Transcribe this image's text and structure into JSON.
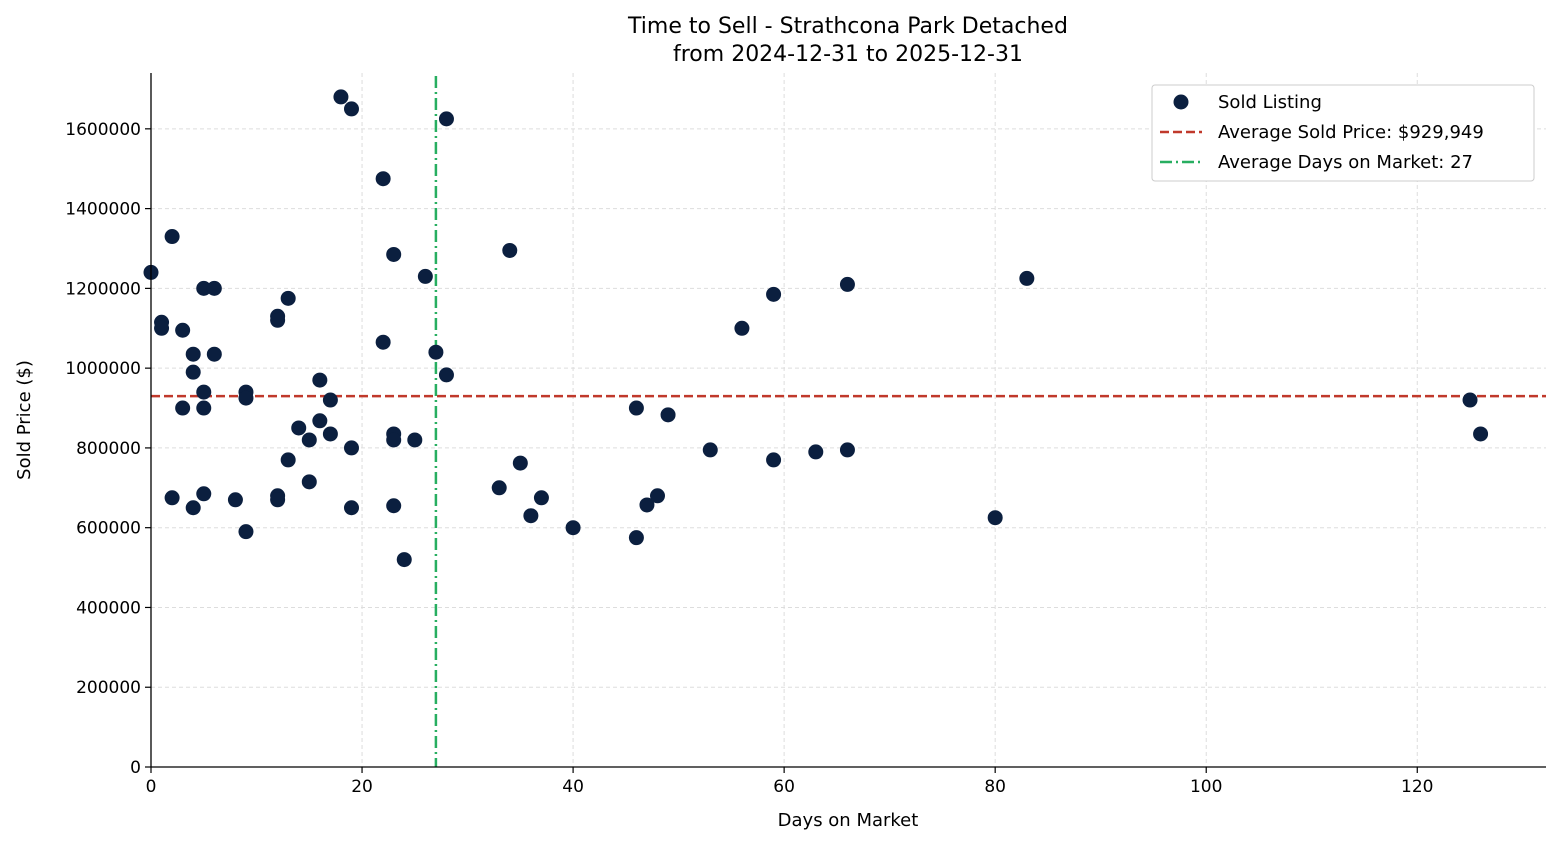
{
  "chart_data": {
    "type": "scatter",
    "title": "Time to Sell - Strathcona Park Detached",
    "subtitle": "from 2024-12-31 to 2025-12-31",
    "xlabel": "Days on Market",
    "ylabel": "Sold Price ($)",
    "xlim": [
      0,
      132.2
    ],
    "ylim": [
      0,
      1740000
    ],
    "xticks": [
      0,
      20,
      40,
      60,
      80,
      100,
      120
    ],
    "yticks": [
      0,
      200000,
      400000,
      600000,
      800000,
      1000000,
      1200000,
      1400000,
      1600000
    ],
    "grid": true,
    "legend_placement": "top-right",
    "colors": {
      "points": "#0b1f3f",
      "avg_price_line": "#c0392b",
      "avg_days_line": "#27ae60"
    },
    "series": [
      {
        "name": "Sold Listing",
        "points": [
          [
            0,
            1240000
          ],
          [
            1,
            1115000
          ],
          [
            1,
            1100000
          ],
          [
            2,
            1330000
          ],
          [
            2,
            675000
          ],
          [
            3,
            1095000
          ],
          [
            3,
            900000
          ],
          [
            4,
            1035000
          ],
          [
            4,
            990000
          ],
          [
            4,
            650000
          ],
          [
            5,
            1200000
          ],
          [
            5,
            940000
          ],
          [
            5,
            900000
          ],
          [
            5,
            685000
          ],
          [
            6,
            1200000
          ],
          [
            6,
            1035000
          ],
          [
            8,
            670000
          ],
          [
            9,
            940000
          ],
          [
            9,
            925000
          ],
          [
            9,
            590000
          ],
          [
            12,
            1130000
          ],
          [
            12,
            1120000
          ],
          [
            12,
            680000
          ],
          [
            12,
            670000
          ],
          [
            13,
            1175000
          ],
          [
            13,
            770000
          ],
          [
            14,
            850000
          ],
          [
            15,
            820000
          ],
          [
            15,
            715000
          ],
          [
            16,
            970000
          ],
          [
            16,
            868000
          ],
          [
            17,
            920000
          ],
          [
            17,
            835000
          ],
          [
            18,
            1680000
          ],
          [
            19,
            1650000
          ],
          [
            19,
            800000
          ],
          [
            19,
            650000
          ],
          [
            22,
            1475000
          ],
          [
            22,
            1065000
          ],
          [
            23,
            1285000
          ],
          [
            23,
            835000
          ],
          [
            23,
            820000
          ],
          [
            23,
            655000
          ],
          [
            24,
            520000
          ],
          [
            25,
            820000
          ],
          [
            26,
            1230000
          ],
          [
            27,
            1040000
          ],
          [
            28,
            1625000
          ],
          [
            28,
            983000
          ],
          [
            33,
            700000
          ],
          [
            34,
            1295000
          ],
          [
            35,
            762000
          ],
          [
            36,
            630000
          ],
          [
            37,
            675000
          ],
          [
            40,
            600000
          ],
          [
            46,
            900000
          ],
          [
            46,
            575000
          ],
          [
            47,
            657000
          ],
          [
            48,
            680000
          ],
          [
            49,
            883000
          ],
          [
            53,
            795000
          ],
          [
            56,
            1100000
          ],
          [
            59,
            1185000
          ],
          [
            59,
            770000
          ],
          [
            63,
            790000
          ],
          [
            66,
            1210000
          ],
          [
            66,
            795000
          ],
          [
            80,
            625000
          ],
          [
            83,
            1225000
          ],
          [
            125,
            920000
          ],
          [
            126,
            835000
          ]
        ]
      }
    ],
    "reference_lines": {
      "avg_price": {
        "label": "Average Sold Price: $929,949",
        "value": 929949
      },
      "avg_days": {
        "label": "Average Days on Market: 27",
        "value": 27
      }
    }
  }
}
